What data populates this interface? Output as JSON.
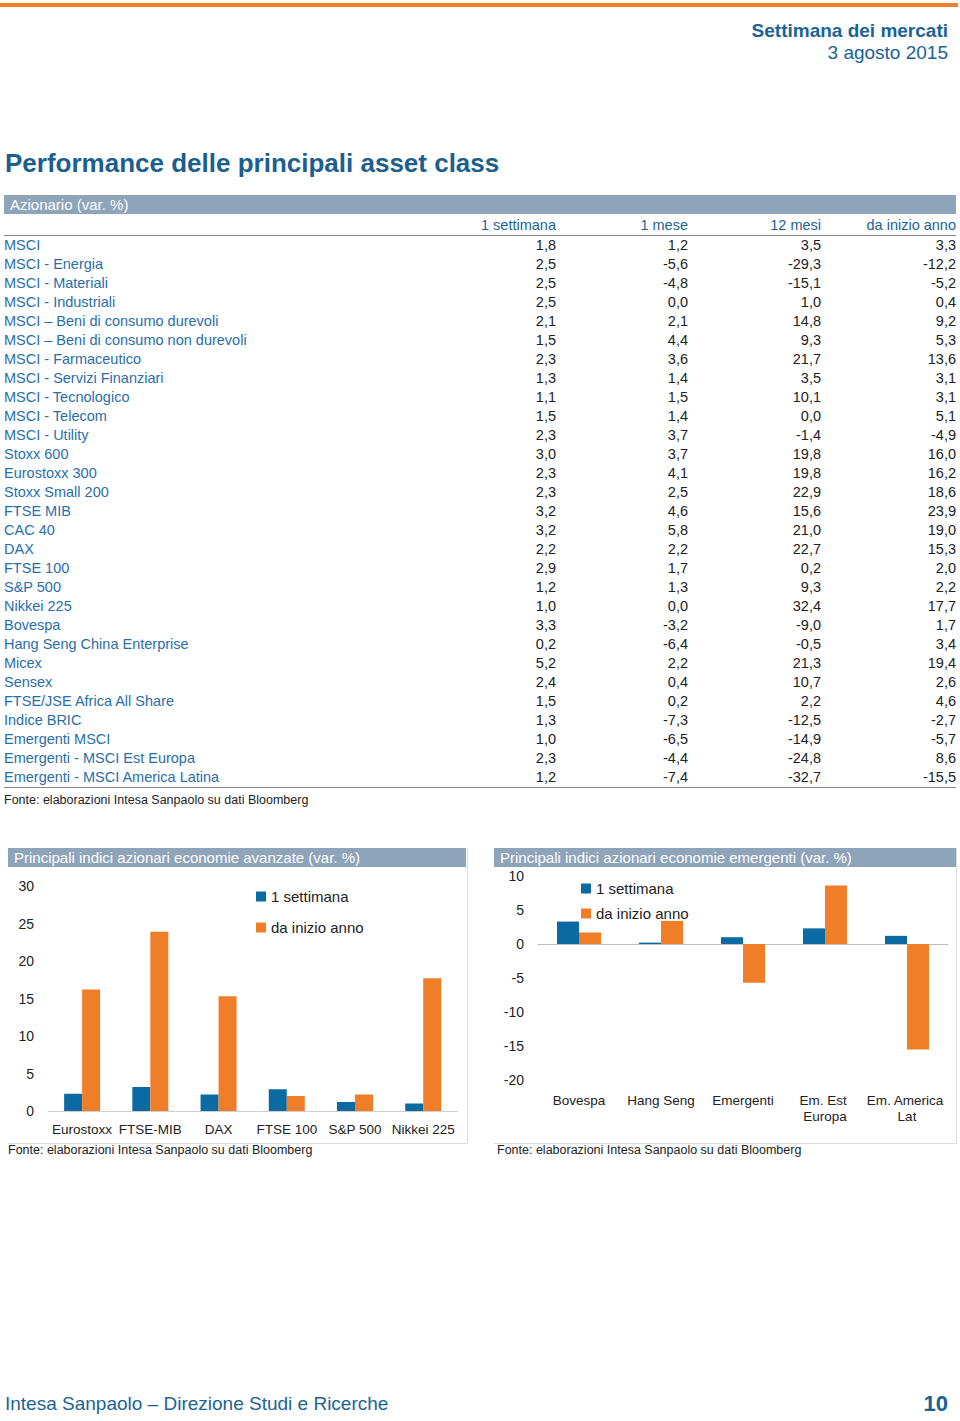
{
  "header": {
    "publication": "Settimana dei mercati",
    "date": "3 agosto 2015"
  },
  "title": "Performance delle principali asset class",
  "table": {
    "caption": "Azionario (var. %)",
    "columns": [
      "1 settimana",
      "1 mese",
      "12 mesi",
      "da inizio anno"
    ],
    "rows": [
      [
        "MSCI",
        "1,8",
        "1,2",
        "3,5",
        "3,3"
      ],
      [
        "MSCI - Energia",
        "2,5",
        "-5,6",
        "-29,3",
        "-12,2"
      ],
      [
        "MSCI - Materiali",
        "2,5",
        "-4,8",
        "-15,1",
        "-5,2"
      ],
      [
        "MSCI - Industriali",
        "2,5",
        "0,0",
        "1,0",
        "0,4"
      ],
      [
        "MSCI – Beni di consumo durevoli",
        "2,1",
        "2,1",
        "14,8",
        "9,2"
      ],
      [
        "MSCI – Beni di consumo non durevoli",
        "1,5",
        "4,4",
        "9,3",
        "5,3"
      ],
      [
        "MSCI - Farmaceutico",
        "2,3",
        "3,6",
        "21,7",
        "13,6"
      ],
      [
        "MSCI - Servizi Finanziari",
        "1,3",
        "1,4",
        "3,5",
        "3,1"
      ],
      [
        "MSCI - Tecnologico",
        "1,1",
        "1,5",
        "10,1",
        "3,1"
      ],
      [
        "MSCI - Telecom",
        "1,5",
        "1,4",
        "0,0",
        "5,1"
      ],
      [
        "MSCI - Utility",
        "2,3",
        "3,7",
        "-1,4",
        "-4,9"
      ],
      [
        "Stoxx 600",
        "3,0",
        "3,7",
        "19,8",
        "16,0"
      ],
      [
        "Eurostoxx 300",
        "2,3",
        "4,1",
        "19,8",
        "16,2"
      ],
      [
        "Stoxx Small 200",
        "2,3",
        "2,5",
        "22,9",
        "18,6"
      ],
      [
        "FTSE MIB",
        "3,2",
        "4,6",
        "15,6",
        "23,9"
      ],
      [
        "CAC 40",
        "3,2",
        "5,8",
        "21,0",
        "19,0"
      ],
      [
        "DAX",
        "2,2",
        "2,2",
        "22,7",
        "15,3"
      ],
      [
        "FTSE 100",
        "2,9",
        "1,7",
        "0,2",
        "2,0"
      ],
      [
        "S&P 500",
        "1,2",
        "1,3",
        "9,3",
        "2,2"
      ],
      [
        "Nikkei 225",
        "1,0",
        "0,0",
        "32,4",
        "17,7"
      ],
      [
        "Bovespa",
        "3,3",
        "-3,2",
        "-9,0",
        "1,7"
      ],
      [
        "Hang Seng China Enterprise",
        "0,2",
        "-6,4",
        "-0,5",
        "3,4"
      ],
      [
        "Micex",
        "5,2",
        "2,2",
        "21,3",
        "19,4"
      ],
      [
        "Sensex",
        "2,4",
        "0,4",
        "10,7",
        "2,6"
      ],
      [
        "FTSE/JSE Africa All Share",
        "1,5",
        "0,2",
        "2,2",
        "4,6"
      ],
      [
        "Indice BRIC",
        "1,3",
        "-7,3",
        "-12,5",
        "-2,7"
      ],
      [
        "Emergenti MSCI",
        "1,0",
        "-6,5",
        "-14,9",
        "-5,7"
      ],
      [
        "Emergenti - MSCI Est Europa",
        "2,3",
        "-4,4",
        "-24,8",
        "8,6"
      ],
      [
        "Emergenti - MSCI America Latina",
        "1,2",
        "-7,4",
        "-32,7",
        "-15,5"
      ]
    ],
    "source": "Fonte: elaborazioni Intesa Sanpaolo su dati Bloomberg"
  },
  "chart_data": [
    {
      "type": "bar",
      "title": "Principali indici azionari economie avanzate (var. %)",
      "categories": [
        "Eurostoxx",
        "FTSE-MIB",
        "DAX",
        "FTSE 100",
        "S&P 500",
        "Nikkei 225"
      ],
      "series": [
        {
          "name": "1 settimana",
          "color": "#0b6aa2",
          "values": [
            2.3,
            3.2,
            2.2,
            2.9,
            1.2,
            1.0
          ]
        },
        {
          "name": "da inizio anno",
          "color": "#f07d28",
          "values": [
            16.2,
            23.9,
            15.3,
            2.0,
            2.2,
            17.7
          ]
        }
      ],
      "ylim": [
        0,
        30
      ],
      "yticks": [
        0,
        5,
        10,
        15,
        20,
        25,
        30
      ],
      "grid": false,
      "legend": "top",
      "source": "Fonte: elaborazioni Intesa Sanpaolo su dati Bloomberg"
    },
    {
      "type": "bar",
      "title": "Principali indici azionari economie emergenti (var. %)",
      "categories": [
        "Bovespa",
        "Hang Seng",
        "Emergenti",
        "Em. Est Europa",
        "Em. America Lat"
      ],
      "series": [
        {
          "name": "1 settimana",
          "color": "#0b6aa2",
          "values": [
            3.3,
            0.2,
            1.0,
            2.3,
            1.2
          ]
        },
        {
          "name": "da inizio anno",
          "color": "#f07d28",
          "values": [
            1.7,
            3.4,
            -5.7,
            8.6,
            -15.5
          ]
        }
      ],
      "ylim": [
        -20,
        10
      ],
      "yticks": [
        -20,
        -15,
        -10,
        -5,
        0,
        5,
        10
      ],
      "grid": false,
      "legend": "top",
      "source": "Fonte: elaborazioni Intesa Sanpaolo su dati Bloomberg"
    }
  ],
  "footer": {
    "text": "Intesa Sanpaolo – Direzione Studi e Ricerche",
    "page": "10"
  }
}
